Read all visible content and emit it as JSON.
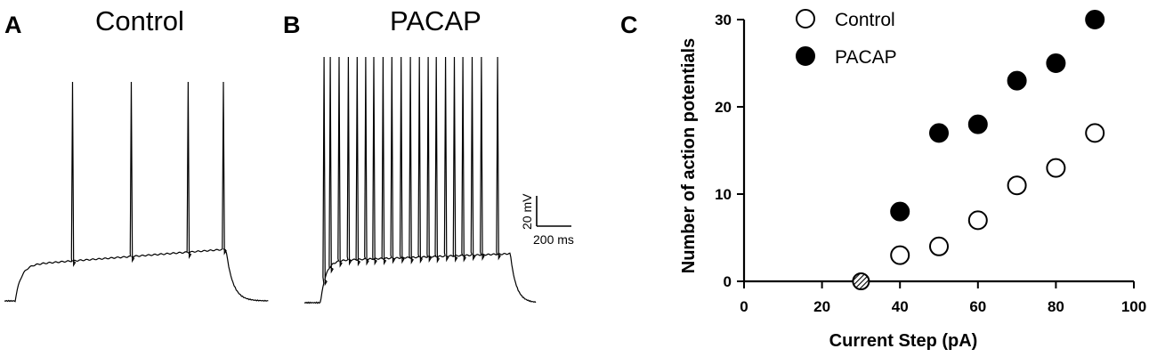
{
  "panels": {
    "a": {
      "letter": "A",
      "title": "Control",
      "spike_times_ms": [
        255,
        475,
        688,
        820
      ]
    },
    "b": {
      "letter": "B",
      "title": "PACAP",
      "spike_times_ms": [
        85,
        112,
        150,
        190,
        228,
        265,
        300,
        340,
        378,
        418,
        458,
        497,
        535,
        570,
        610,
        648,
        685,
        725,
        765,
        835
      ]
    }
  },
  "scale_bar": {
    "voltage_label": "20 mV",
    "time_label": "200 ms"
  },
  "chart_data": {
    "panel": "C",
    "type": "scatter",
    "title": "",
    "xlabel": "Current Step  (pA)",
    "ylabel": "Number of action potentials",
    "xlim": [
      0,
      100
    ],
    "ylim": [
      0,
      30
    ],
    "x_ticks": [
      0,
      20,
      40,
      60,
      80,
      100
    ],
    "y_ticks": [
      0,
      10,
      20,
      30
    ],
    "grid": false,
    "legend_position": "top-left",
    "series": [
      {
        "name": "Control",
        "marker": "open-circle",
        "x": [
          40,
          50,
          60,
          70,
          80,
          90
        ],
        "y": [
          3,
          4,
          7,
          11,
          13,
          17
        ]
      },
      {
        "name": "PACAP",
        "marker": "filled-circle",
        "x": [
          40,
          50,
          60,
          70,
          80,
          90
        ],
        "y": [
          8,
          17,
          18,
          23,
          25,
          30
        ]
      }
    ],
    "overlap_point": {
      "marker": "hatched-circle",
      "x": 30,
      "y": 0
    }
  }
}
